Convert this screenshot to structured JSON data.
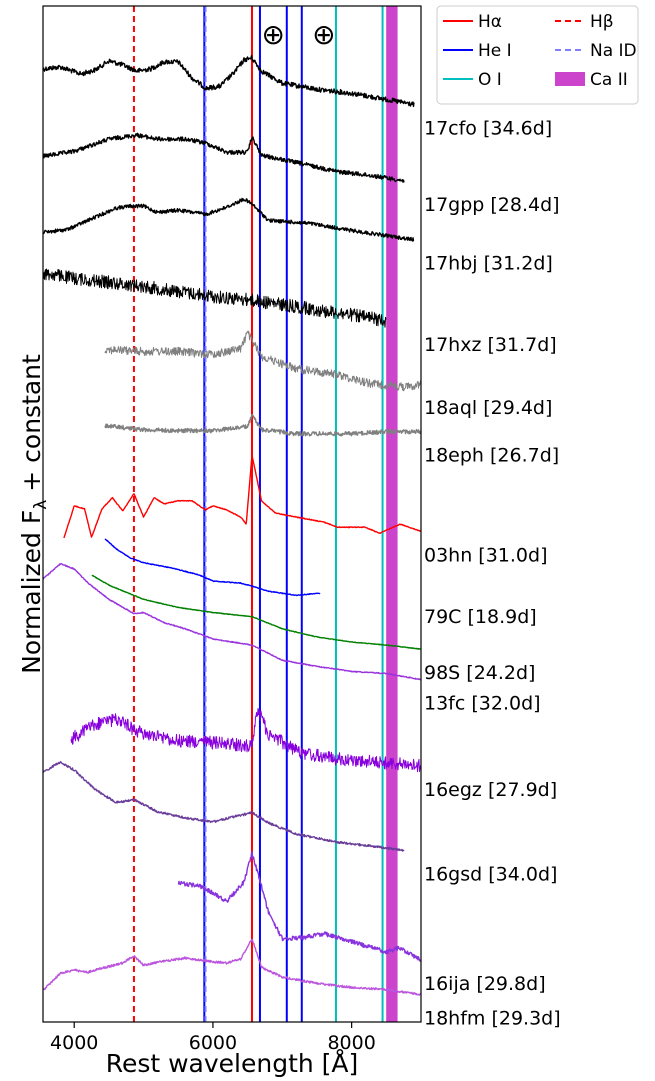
{
  "chart_data": {
    "type": "line",
    "xlabel": "Rest wavelength [Å]",
    "ylabel": "Normalized F",
    "ylabel_subscript": "λ",
    "ylabel_suffix": " + constant",
    "xlim": [
      3550,
      9000
    ],
    "ylim": [
      0,
      1
    ],
    "xticks": [
      4000,
      6000,
      8000
    ],
    "legend": {
      "placement": "outside-top-right",
      "entries": [
        {
          "label": "Hα",
          "style": "solid",
          "color": "#ff0000"
        },
        {
          "label": "Hβ",
          "style": "dashed",
          "color": "#ff0000"
        },
        {
          "label": "He I",
          "style": "solid",
          "color": "#0000ff"
        },
        {
          "label": "Na ID",
          "style": "dashed",
          "color": "#8080ff"
        },
        {
          "label": "O I",
          "style": "solid",
          "color": "#00bfbf"
        },
        {
          "label": "Ca II",
          "style": "band",
          "color": "#cc44cc"
        }
      ]
    },
    "telluric_symbol": "⊕",
    "telluric_wavelengths": [
      6870,
      7600
    ],
    "line_markers": [
      {
        "type": "Hα",
        "x": 6563,
        "style": "solid",
        "color": "#ff0000"
      },
      {
        "type": "Hβ",
        "x": 4861,
        "style": "dashed",
        "color": "#ff0000"
      },
      {
        "type": "He I",
        "x": 5876,
        "style": "solid",
        "color": "#0000ff"
      },
      {
        "type": "He I",
        "x": 6678,
        "style": "solid",
        "color": "#0000ff"
      },
      {
        "type": "He I",
        "x": 7065,
        "style": "solid",
        "color": "#0000ff"
      },
      {
        "type": "He I",
        "x": 7281,
        "style": "solid",
        "color": "#0000ff"
      },
      {
        "type": "Na ID",
        "x": 5893,
        "style": "dashed",
        "color": "#8080ff"
      },
      {
        "type": "O I",
        "x": 7774,
        "style": "solid",
        "color": "#00bfbf"
      },
      {
        "type": "O I",
        "x": 8446,
        "style": "solid",
        "color": "#00bfbf"
      },
      {
        "type": "Ca II",
        "range": [
          8498,
          8662
        ],
        "style": "band",
        "color": "#cc44cc"
      }
    ],
    "series": [
      {
        "name": "17cfo [34.6d]",
        "color": "#000000",
        "x_range": [
          3550,
          8900
        ],
        "noise": 0.8,
        "points": [
          [
            3550,
            0.062
          ],
          [
            3800,
            0.06
          ],
          [
            4100,
            0.067
          ],
          [
            4300,
            0.063
          ],
          [
            4500,
            0.054
          ],
          [
            4700,
            0.058
          ],
          [
            4900,
            0.064
          ],
          [
            5100,
            0.062
          ],
          [
            5300,
            0.055
          ],
          [
            5500,
            0.055
          ],
          [
            5700,
            0.071
          ],
          [
            5900,
            0.081
          ],
          [
            6100,
            0.079
          ],
          [
            6300,
            0.066
          ],
          [
            6450,
            0.053
          ],
          [
            6560,
            0.051
          ],
          [
            6700,
            0.064
          ],
          [
            7000,
            0.076
          ],
          [
            7500,
            0.082
          ],
          [
            8000,
            0.086
          ],
          [
            8500,
            0.092
          ],
          [
            8900,
            0.097
          ]
        ]
      },
      {
        "name": "17gpp [28.4d]",
        "color": "#000000",
        "x_range": [
          3550,
          8750
        ],
        "noise": 0.7,
        "points": [
          [
            3550,
            0.148
          ],
          [
            4000,
            0.143
          ],
          [
            4500,
            0.131
          ],
          [
            4900,
            0.127
          ],
          [
            5200,
            0.131
          ],
          [
            5600,
            0.131
          ],
          [
            5900,
            0.135
          ],
          [
            6200,
            0.144
          ],
          [
            6500,
            0.144
          ],
          [
            6563,
            0.129
          ],
          [
            6700,
            0.147
          ],
          [
            7200,
            0.154
          ],
          [
            7800,
            0.163
          ],
          [
            8300,
            0.167
          ],
          [
            8750,
            0.172
          ]
        ]
      },
      {
        "name": "17hbj [31.2d]",
        "color": "#000000",
        "x_range": [
          3550,
          8900
        ],
        "noise": 0.6,
        "points": [
          [
            3550,
            0.223
          ],
          [
            3900,
            0.22
          ],
          [
            4300,
            0.208
          ],
          [
            4600,
            0.199
          ],
          [
            4800,
            0.197
          ],
          [
            5000,
            0.197
          ],
          [
            5200,
            0.203
          ],
          [
            5500,
            0.201
          ],
          [
            5900,
            0.205
          ],
          [
            6200,
            0.198
          ],
          [
            6450,
            0.19
          ],
          [
            6563,
            0.195
          ],
          [
            6800,
            0.211
          ],
          [
            7400,
            0.214
          ],
          [
            8000,
            0.221
          ],
          [
            8500,
            0.226
          ],
          [
            8900,
            0.23
          ]
        ]
      },
      {
        "name": "17hxz [31.7d]",
        "color": "#000000",
        "x_range": [
          3550,
          8500
        ],
        "noise": 2.2,
        "points": [
          [
            3550,
            0.263
          ],
          [
            4000,
            0.268
          ],
          [
            4500,
            0.272
          ],
          [
            5000,
            0.276
          ],
          [
            5500,
            0.281
          ],
          [
            6000,
            0.286
          ],
          [
            6500,
            0.289
          ],
          [
            7000,
            0.294
          ],
          [
            7500,
            0.299
          ],
          [
            8000,
            0.304
          ],
          [
            8500,
            0.31
          ]
        ]
      },
      {
        "name": "18aql [29.4d]",
        "color": "#808080",
        "x_range": [
          4450,
          9000
        ],
        "noise": 1.4,
        "points": [
          [
            4450,
            0.338
          ],
          [
            5000,
            0.34
          ],
          [
            5500,
            0.34
          ],
          [
            6000,
            0.343
          ],
          [
            6400,
            0.337
          ],
          [
            6500,
            0.322
          ],
          [
            6700,
            0.345
          ],
          [
            7200,
            0.357
          ],
          [
            7800,
            0.363
          ],
          [
            8300,
            0.372
          ],
          [
            8800,
            0.375
          ],
          [
            9000,
            0.372
          ]
        ]
      },
      {
        "name": "18eph [26.7d]",
        "color": "#808080",
        "x_range": [
          4450,
          9000
        ],
        "noise": 0.7,
        "points": [
          [
            4450,
            0.413
          ],
          [
            5000,
            0.417
          ],
          [
            5500,
            0.418
          ],
          [
            6000,
            0.418
          ],
          [
            6500,
            0.414
          ],
          [
            6563,
            0.403
          ],
          [
            6700,
            0.417
          ],
          [
            7200,
            0.421
          ],
          [
            8000,
            0.421
          ],
          [
            8500,
            0.419
          ],
          [
            9000,
            0.419
          ]
        ]
      },
      {
        "name": "03hn [31.0d]",
        "color": "#ff0000",
        "x_range": [
          3850,
          9000
        ],
        "noise": 0.12,
        "points": [
          [
            3850,
            0.524
          ],
          [
            4000,
            0.492
          ],
          [
            4150,
            0.495
          ],
          [
            4250,
            0.523
          ],
          [
            4400,
            0.495
          ],
          [
            4550,
            0.484
          ],
          [
            4700,
            0.497
          ],
          [
            4861,
            0.48
          ],
          [
            5000,
            0.503
          ],
          [
            5150,
            0.484
          ],
          [
            5300,
            0.49
          ],
          [
            5500,
            0.487
          ],
          [
            5700,
            0.487
          ],
          [
            5890,
            0.496
          ],
          [
            6000,
            0.492
          ],
          [
            6200,
            0.496
          ],
          [
            6400,
            0.503
          ],
          [
            6480,
            0.51
          ],
          [
            6563,
            0.442
          ],
          [
            6700,
            0.487
          ],
          [
            6900,
            0.499
          ],
          [
            7200,
            0.503
          ],
          [
            7600,
            0.508
          ],
          [
            7800,
            0.513
          ],
          [
            8200,
            0.513
          ],
          [
            8400,
            0.519
          ],
          [
            8600,
            0.513
          ],
          [
            8700,
            0.51
          ],
          [
            9000,
            0.517
          ]
        ]
      },
      {
        "name": "79C [18.9d]",
        "color": "#0000ff",
        "x_range": [
          4440,
          7550
        ],
        "noise": 0.12,
        "points": [
          [
            4440,
            0.524
          ],
          [
            4600,
            0.534
          ],
          [
            4800,
            0.543
          ],
          [
            5000,
            0.548
          ],
          [
            5400,
            0.553
          ],
          [
            5800,
            0.56
          ],
          [
            6000,
            0.566
          ],
          [
            6400,
            0.568
          ],
          [
            6563,
            0.571
          ],
          [
            6800,
            0.576
          ],
          [
            7200,
            0.58
          ],
          [
            7550,
            0.578
          ]
        ]
      },
      {
        "name": "98S [24.2d]",
        "color": "#008000",
        "x_range": [
          4250,
          9000
        ],
        "noise": 0.1,
        "points": [
          [
            4250,
            0.56
          ],
          [
            4500,
            0.57
          ],
          [
            5000,
            0.584
          ],
          [
            5500,
            0.592
          ],
          [
            6000,
            0.597
          ],
          [
            6563,
            0.601
          ],
          [
            7000,
            0.613
          ],
          [
            7500,
            0.621
          ],
          [
            8000,
            0.626
          ],
          [
            8500,
            0.629
          ],
          [
            9000,
            0.633
          ]
        ]
      },
      {
        "name": "13fc [32.0d]",
        "color": "#9933dd",
        "x_range": [
          3550,
          9000
        ],
        "noise": 0.15,
        "points": [
          [
            3550,
            0.564
          ],
          [
            3800,
            0.549
          ],
          [
            4000,
            0.554
          ],
          [
            4200,
            0.568
          ],
          [
            4500,
            0.584
          ],
          [
            4861,
            0.598
          ],
          [
            5000,
            0.597
          ],
          [
            5300,
            0.607
          ],
          [
            5600,
            0.613
          ],
          [
            6000,
            0.623
          ],
          [
            6563,
            0.629
          ],
          [
            7000,
            0.644
          ],
          [
            7500,
            0.65
          ],
          [
            8000,
            0.655
          ],
          [
            8500,
            0.657
          ],
          [
            9000,
            0.663
          ]
        ]
      },
      {
        "name": "16egz [27.9d]",
        "color": "#8800dd",
        "x_range": [
          3950,
          9000
        ],
        "noise": 2.2,
        "points": [
          [
            3950,
            0.722
          ],
          [
            4300,
            0.707
          ],
          [
            4600,
            0.702
          ],
          [
            5000,
            0.717
          ],
          [
            5500,
            0.723
          ],
          [
            6000,
            0.725
          ],
          [
            6500,
            0.728
          ],
          [
            6563,
            0.725
          ],
          [
            6650,
            0.692
          ],
          [
            6800,
            0.717
          ],
          [
            7300,
            0.736
          ],
          [
            7800,
            0.741
          ],
          [
            8300,
            0.744
          ],
          [
            9000,
            0.748
          ]
        ]
      },
      {
        "name": "16gsd [34.0d]",
        "color": "#6a3d9a",
        "x_range": [
          3550,
          8750
        ],
        "noise": 0.35,
        "points": [
          [
            3550,
            0.754
          ],
          [
            3800,
            0.744
          ],
          [
            4000,
            0.752
          ],
          [
            4300,
            0.771
          ],
          [
            4600,
            0.784
          ],
          [
            4861,
            0.781
          ],
          [
            5200,
            0.793
          ],
          [
            5600,
            0.799
          ],
          [
            6000,
            0.803
          ],
          [
            6300,
            0.798
          ],
          [
            6563,
            0.794
          ],
          [
            6800,
            0.804
          ],
          [
            7200,
            0.815
          ],
          [
            7800,
            0.823
          ],
          [
            8300,
            0.827
          ],
          [
            8750,
            0.831
          ]
        ]
      },
      {
        "name": "16ija [29.8d]",
        "color": "#8833dd",
        "x_range": [
          5500,
          9000
        ],
        "noise": 0.7,
        "points": [
          [
            5500,
            0.863
          ],
          [
            5800,
            0.866
          ],
          [
            6000,
            0.873
          ],
          [
            6200,
            0.881
          ],
          [
            6450,
            0.862
          ],
          [
            6563,
            0.834
          ],
          [
            6650,
            0.854
          ],
          [
            6800,
            0.892
          ],
          [
            7000,
            0.918
          ],
          [
            7300,
            0.917
          ],
          [
            7600,
            0.913
          ],
          [
            7800,
            0.917
          ],
          [
            8200,
            0.925
          ],
          [
            8500,
            0.931
          ],
          [
            8700,
            0.927
          ],
          [
            9000,
            0.939
          ]
        ]
      },
      {
        "name": "18hfm [29.3d]",
        "color": "#bb55dd",
        "x_range": [
          3550,
          9000
        ],
        "noise": 0.35,
        "points": [
          [
            3550,
            0.969
          ],
          [
            3800,
            0.952
          ],
          [
            4000,
            0.949
          ],
          [
            4200,
            0.951
          ],
          [
            4400,
            0.947
          ],
          [
            4700,
            0.942
          ],
          [
            4861,
            0.935
          ],
          [
            5000,
            0.944
          ],
          [
            5300,
            0.94
          ],
          [
            5600,
            0.937
          ],
          [
            5900,
            0.94
          ],
          [
            6200,
            0.942
          ],
          [
            6400,
            0.938
          ],
          [
            6563,
            0.918
          ],
          [
            6700,
            0.946
          ],
          [
            7000,
            0.956
          ],
          [
            7500,
            0.962
          ],
          [
            8000,
            0.966
          ],
          [
            8500,
            0.968
          ],
          [
            9000,
            0.973
          ]
        ]
      }
    ]
  }
}
